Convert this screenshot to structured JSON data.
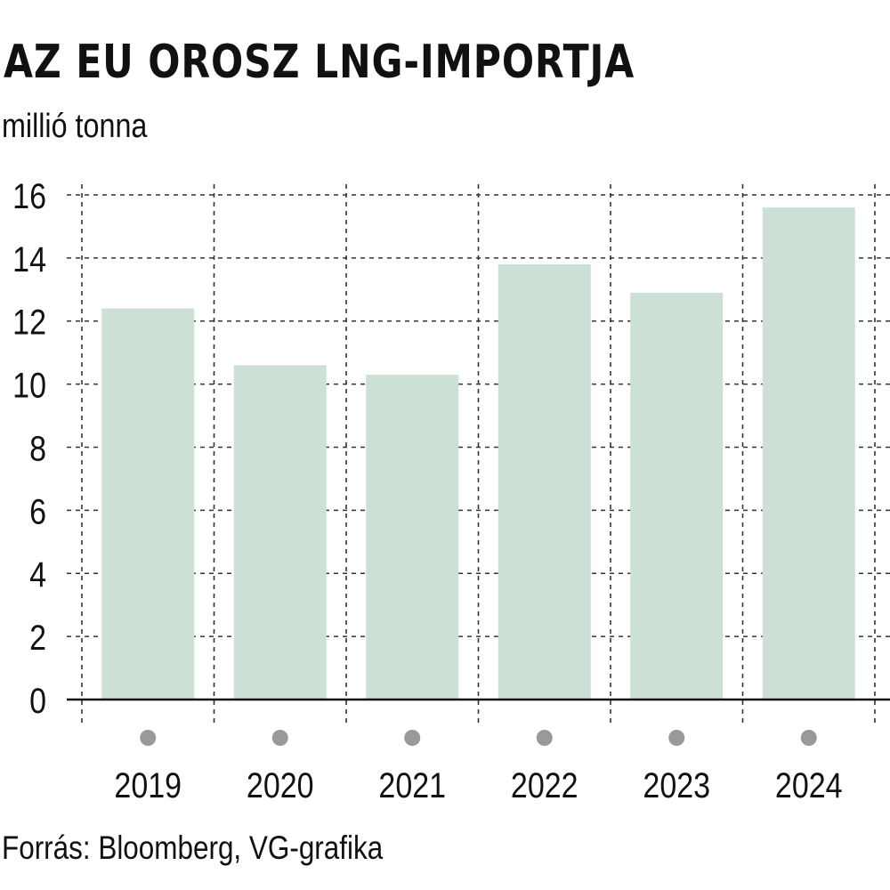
{
  "chart_data": {
    "type": "bar",
    "title": "AZ EU OROSZ LNG-IMPORTJA",
    "subtitle": "millió tonna",
    "source": "Forrás: Bloomberg, VG-grafika",
    "categories": [
      "2019",
      "2020",
      "2021",
      "2022",
      "2023",
      "2024"
    ],
    "values": [
      12.4,
      10.6,
      10.3,
      13.8,
      12.9,
      15.6
    ],
    "ylim": [
      0,
      16
    ],
    "yticks": [
      0,
      2,
      4,
      6,
      8,
      10,
      12,
      14,
      16
    ],
    "grid": true,
    "colors": {
      "bar": "#cde0d6",
      "grid": "#333333",
      "axis": "#111111",
      "marker": "#999999"
    }
  }
}
